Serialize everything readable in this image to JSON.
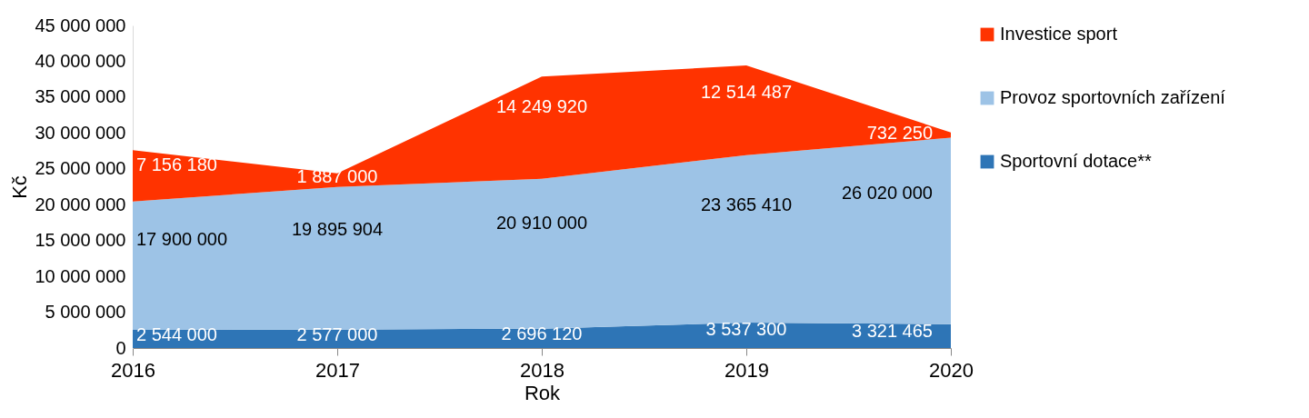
{
  "chart_data": {
    "type": "area",
    "stacked": true,
    "xlabel": "Rok",
    "ylabel": "Kč",
    "x": [
      2016,
      2017,
      2018,
      2019,
      2020
    ],
    "xlim": [
      2016,
      2020
    ],
    "xticks": [
      2016,
      2017,
      2018,
      2019,
      2020
    ],
    "ylim": [
      0,
      45000000
    ],
    "yticks": [
      {
        "value": 0,
        "label": "0"
      },
      {
        "value": 5000000,
        "label": "5 000 000"
      },
      {
        "value": 10000000,
        "label": "10 000 000"
      },
      {
        "value": 15000000,
        "label": "15 000 000"
      },
      {
        "value": 20000000,
        "label": "20 000 000"
      },
      {
        "value": 25000000,
        "label": "25 000 000"
      },
      {
        "value": 30000000,
        "label": "30 000 000"
      },
      {
        "value": 35000000,
        "label": "35 000 000"
      },
      {
        "value": 40000000,
        "label": "40 000 000"
      },
      {
        "value": 45000000,
        "label": "45 000 000"
      }
    ],
    "grid": false,
    "legend": "right",
    "data_labels": true,
    "series": [
      {
        "name": "Sportovní dotace**",
        "color": "#2e75b6",
        "values": [
          2544000,
          2577000,
          2696120,
          3537300,
          3321465
        ]
      },
      {
        "name": "Provoz sportovních zařízení",
        "color": "#9dc3e6",
        "values": [
          17900000,
          19895904,
          20910000,
          23365410,
          26020000
        ]
      },
      {
        "name": "Investice sport",
        "color": "#ff3300",
        "values": [
          7156180,
          1887000,
          14249920,
          12514487,
          732250
        ]
      }
    ]
  }
}
